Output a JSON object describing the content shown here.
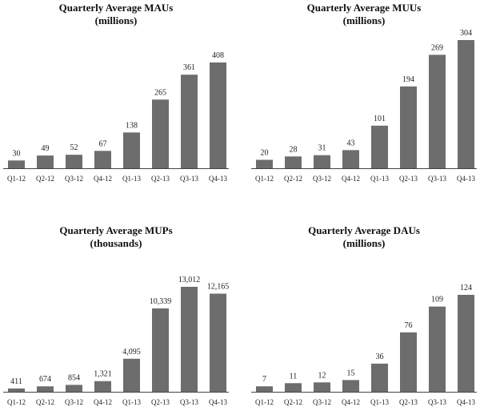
{
  "chart_data": [
    {
      "type": "bar",
      "title": "Quarterly Average MAUs",
      "subtitle": "(millions)",
      "categories": [
        "Q1-12",
        "Q2-12",
        "Q3-12",
        "Q4-12",
        "Q1-13",
        "Q2-13",
        "Q3-13",
        "Q4-13"
      ],
      "values": [
        30,
        49,
        52,
        67,
        138,
        265,
        361,
        408
      ],
      "labels": [
        "30",
        "49",
        "52",
        "67",
        "138",
        "265",
        "361",
        "408"
      ],
      "ylim": [
        0,
        408
      ],
      "bar_color": "#6d6d6d",
      "grid": false
    },
    {
      "type": "bar",
      "title": "Quarterly Average MUUs",
      "subtitle": "(millions)",
      "categories": [
        "Q1-12",
        "Q2-12",
        "Q3-12",
        "Q4-12",
        "Q1-13",
        "Q2-13",
        "Q3-13",
        "Q4-13"
      ],
      "values": [
        20,
        28,
        31,
        43,
        101,
        194,
        269,
        304
      ],
      "labels": [
        "20",
        "28",
        "31",
        "43",
        "101",
        "194",
        "269",
        "304"
      ],
      "ylim": [
        0,
        304
      ],
      "bar_color": "#6d6d6d",
      "grid": false
    },
    {
      "type": "bar",
      "title": "Quarterly Average MUPs",
      "subtitle": "(thousands)",
      "categories": [
        "Q1-12",
        "Q2-12",
        "Q3-12",
        "Q4-12",
        "Q1-13",
        "Q2-13",
        "Q3-13",
        "Q4-13"
      ],
      "values": [
        411,
        674,
        854,
        1321,
        4095,
        10339,
        13012,
        12165
      ],
      "labels": [
        "411",
        "674",
        "854",
        "1,321",
        "4,095",
        "10,339",
        "13,012",
        "12,165"
      ],
      "ylim": [
        0,
        13012
      ],
      "bar_color": "#6d6d6d",
      "grid": false
    },
    {
      "type": "bar",
      "title": "Quarterly Average DAUs",
      "subtitle": "(millions)",
      "categories": [
        "Q1-12",
        "Q2-12",
        "Q3-12",
        "Q4-12",
        "Q1-13",
        "Q2-13",
        "Q3-13",
        "Q4-13"
      ],
      "values": [
        7,
        11,
        12,
        15,
        36,
        76,
        109,
        124
      ],
      "labels": [
        "7",
        "11",
        "12",
        "15",
        "36",
        "76",
        "109",
        "124"
      ],
      "ylim": [
        0,
        124
      ],
      "bar_color": "#6d6d6d",
      "grid": false
    }
  ]
}
